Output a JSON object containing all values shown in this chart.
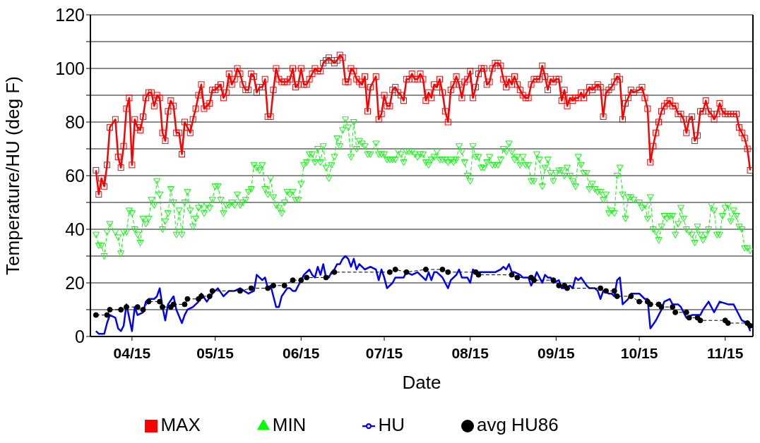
{
  "chart_data": {
    "type": "line",
    "xlabel": "Date",
    "ylabel": "Temperature/HU (deg F)",
    "ylim": [
      0,
      120
    ],
    "yticks": [
      0,
      {
        "value": 10,
        "label": null
      },
      20,
      {
        "value": 30,
        "label": null
      },
      40,
      {
        "value": 50,
        "label": null
      },
      60,
      {
        "value": 70,
        "label": null
      },
      80,
      {
        "value": 90,
        "label": null
      },
      100,
      {
        "value": 110,
        "label": null
      },
      120
    ],
    "xlim": [
      "--03-31",
      "--11-25"
    ],
    "xticks": [
      {
        "value": "--04-15",
        "label": "04/15"
      },
      {
        "value": "--05-15",
        "label": "05/15"
      },
      {
        "value": "--06-15",
        "label": "06/15"
      },
      {
        "value": "--07-15",
        "label": "07/15"
      },
      {
        "value": "--08-15",
        "label": "08/15"
      },
      {
        "value": "--09-15",
        "label": "09/15"
      },
      {
        "value": "--10-15",
        "label": "10/15"
      },
      {
        "value": "--11-15",
        "label": "11/15"
      }
    ],
    "grid": "y",
    "legend": "bottom",
    "x": [
      "--04-02",
      "--04-03",
      "--04-04",
      "--04-05",
      "--04-06",
      "--04-07",
      "--04-09",
      "--04-10",
      "--04-11",
      "--04-12",
      "--04-13",
      "--04-14",
      "--04-15",
      "--04-16",
      "--04-17",
      "--04-18",
      "--04-19",
      "--04-20",
      "--04-21",
      "--04-22",
      "--04-23",
      "--04-24",
      "--04-25",
      "--04-26",
      "--04-27",
      "--04-28",
      "--04-29",
      "--04-30",
      "--05-01",
      "--05-02",
      "--05-03",
      "--05-04",
      "--05-05",
      "--05-06",
      "--05-07",
      "--05-08",
      "--05-09",
      "--05-10",
      "--05-11",
      "--05-12",
      "--05-13",
      "--05-14",
      "--05-15",
      "--05-16",
      "--05-17",
      "--05-18",
      "--05-19",
      "--05-20",
      "--05-21",
      "--05-22",
      "--05-23",
      "--05-24",
      "--05-25",
      "--05-26",
      "--05-27",
      "--05-28",
      "--05-29",
      "--05-30",
      "--05-31",
      "--06-01",
      "--06-02",
      "--06-03",
      "--06-04",
      "--06-05",
      "--06-06",
      "--06-07",
      "--06-08",
      "--06-09",
      "--06-10",
      "--06-11",
      "--06-12",
      "--06-13",
      "--06-14",
      "--06-15",
      "--06-16",
      "--06-17",
      "--06-18",
      "--06-19",
      "--06-20",
      "--06-21",
      "--06-22",
      "--06-23",
      "--06-24",
      "--06-25",
      "--06-26",
      "--06-27",
      "--06-28",
      "--06-29",
      "--06-30",
      "--07-01",
      "--07-02",
      "--07-03",
      "--07-04",
      "--07-05",
      "--07-06",
      "--07-07",
      "--07-08",
      "--07-09",
      "--07-10",
      "--07-12",
      "--07-13",
      "--07-14",
      "--07-15",
      "--07-16",
      "--07-17",
      "--07-18",
      "--07-19",
      "--07-20",
      "--07-21",
      "--07-22",
      "--07-23",
      "--07-24",
      "--07-25",
      "--07-26",
      "--07-27",
      "--07-28",
      "--07-29",
      "--07-30",
      "--07-31",
      "--08-01",
      "--08-02",
      "--08-03",
      "--08-04",
      "--08-05",
      "--08-06",
      "--08-07",
      "--08-08",
      "--08-09",
      "--08-10",
      "--08-11",
      "--08-12",
      "--08-13",
      "--08-14",
      "--08-15",
      "--08-16",
      "--08-17",
      "--08-18",
      "--08-19",
      "--08-20",
      "--08-21",
      "--08-22",
      "--08-23",
      "--08-24",
      "--08-25",
      "--08-26",
      "--08-27",
      "--08-28",
      "--08-29",
      "--08-30",
      "--08-31",
      "--09-01",
      "--09-02",
      "--09-03",
      "--09-04",
      "--09-05",
      "--09-06",
      "--09-07",
      "--09-08",
      "--09-09",
      "--09-10",
      "--09-11",
      "--09-12",
      "--09-13",
      "--09-14",
      "--09-15",
      "--09-16",
      "--09-17",
      "--09-18",
      "--09-19",
      "--09-20",
      "--09-21",
      "--09-22",
      "--09-23",
      "--09-24",
      "--09-25",
      "--09-26",
      "--09-27",
      "--09-28",
      "--09-29",
      "--09-30",
      "--10-01",
      "--10-02",
      "--10-03",
      "--10-04",
      "--10-05",
      "--10-06",
      "--10-07",
      "--10-08",
      "--10-09",
      "--10-10",
      "--10-11",
      "--10-12",
      "--10-13",
      "--10-15",
      "--10-16",
      "--10-17",
      "--10-18",
      "--10-19",
      "--10-20",
      "--10-21",
      "--10-22",
      "--10-23",
      "--10-24",
      "--10-25",
      "--10-26",
      "--10-27",
      "--10-28",
      "--10-29",
      "--10-30",
      "--10-31",
      "--11-01",
      "--11-02",
      "--11-03",
      "--11-04",
      "--11-05",
      "--11-06",
      "--11-07",
      "--11-08",
      "--11-09",
      "--11-10",
      "--11-11",
      "--11-12",
      "--11-13",
      "--11-14",
      "--11-15",
      "--11-16",
      "--11-17",
      "--11-18",
      "--11-19",
      "--11-20",
      "--11-21",
      "--11-22",
      "--11-23",
      "--11-24"
    ],
    "series": [
      {
        "name": "MAX",
        "color": "#ff0000",
        "marker": "square",
        "line_style": "solid",
        "values": [
          62,
          53,
          59,
          56,
          64,
          78,
          81,
          67,
          63,
          71,
          85,
          89,
          64,
          81,
          78,
          77,
          82,
          89,
          91,
          91,
          86,
          90,
          89,
          76,
          73,
          84,
          88,
          86,
          76,
          76,
          68,
          80,
          78,
          76,
          81,
          85,
          90,
          94,
          85,
          86,
          87,
          92,
          92,
          93,
          94,
          89,
          91,
          98,
          94,
          96,
          100,
          98,
          94,
          92,
          92,
          98,
          97,
          91,
          93,
          93,
          96,
          82,
          82,
          92,
          100,
          96,
          95,
          95,
          95,
          96,
          100,
          93,
          94,
          100,
          94,
          94,
          96,
          98,
          100,
          99,
          99,
          102,
          103,
          104,
          103,
          102,
          103,
          105,
          104,
          95,
          95,
          100,
          99,
          96,
          95,
          94,
          97,
          84,
          93,
          97,
          81,
          83,
          90,
          86,
          86,
          92,
          93,
          91,
          90,
          88,
          96,
          96,
          98,
          96,
          96,
          98,
          96,
          88,
          91,
          89,
          94,
          93,
          96,
          91,
          84,
          80,
          92,
          94,
          97,
          94,
          89,
          95,
          96,
          99,
          89,
          93,
          98,
          100,
          100,
          94,
          95,
          100,
          102,
          102,
          101,
          96,
          93,
          96,
          94,
          97,
          94,
          92,
          90,
          89,
          89,
          94,
          96,
          96,
          96,
          101,
          97,
          92,
          96,
          95,
          96,
          96,
          88,
          92,
          86,
          89,
          88,
          89,
          89,
          91,
          89,
          91,
          93,
          92,
          93,
          94,
          93,
          82,
          91,
          92,
          93,
          95,
          97,
          96,
          81,
          87,
          89,
          92,
          91,
          92,
          93,
          89,
          85,
          65,
          71,
          76,
          80,
          84,
          86,
          87,
          88,
          86,
          86,
          83,
          83,
          81,
          76,
          81,
          82,
          73,
          75,
          84,
          84,
          88,
          84,
          83,
          81,
          83,
          87,
          84,
          83,
          83,
          83,
          83,
          83,
          78,
          76,
          74,
          70,
          62
        ]
      },
      {
        "name": "MIN",
        "color": "#00ff00",
        "marker": "triangle",
        "line_style": "dashed",
        "values": [
          38,
          34,
          34,
          30,
          39,
          42,
          39,
          37,
          31,
          39,
          39,
          47,
          46,
          40,
          38,
          35,
          44,
          42,
          44,
          51,
          49,
          58,
          53,
          40,
          43,
          46,
          55,
          50,
          38,
          47,
          38,
          50,
          54,
          47,
          41,
          44,
          48,
          49,
          46,
          49,
          48,
          51,
          56,
          56,
          51,
          46,
          49,
          49,
          50,
          49,
          53,
          49,
          50,
          51,
          54,
          55,
          64,
          63,
          62,
          64,
          55,
          53,
          59,
          52,
          49,
          48,
          46,
          50,
          54,
          53,
          54,
          51,
          51,
          57,
          64,
          65,
          68,
          68,
          65,
          70,
          65,
          71,
          63,
          59,
          64,
          67,
          74,
          71,
          77,
          81,
          78,
          67,
          80,
          70,
          73,
          72,
          71,
          68,
          68,
          72,
          68,
          68,
          68,
          66,
          66,
          66,
          66,
          69,
          68,
          65,
          69,
          69,
          69,
          68,
          67,
          68,
          68,
          65,
          64,
          66,
          67,
          69,
          66,
          66,
          66,
          65,
          66,
          65,
          66,
          71,
          69,
          65,
          60,
          58,
          71,
          67,
          67,
          63,
          63,
          65,
          67,
          64,
          64,
          64,
          66,
          70,
          69,
          72,
          69,
          66,
          67,
          64,
          67,
          64,
          64,
          58,
          58,
          68,
          66,
          56,
          63,
          66,
          61,
          58,
          61,
          62,
          62,
          60,
          63,
          60,
          58,
          56,
          67,
          64,
          61,
          61,
          55,
          57,
          55,
          54,
          54,
          51,
          53,
          46,
          47,
          46,
          60,
          63,
          53,
          44,
          52,
          52,
          51,
          50,
          48,
          49,
          44,
          52,
          40,
          39,
          36,
          41,
          45,
          44,
          45,
          45,
          38,
          42,
          48,
          44,
          40,
          39,
          38,
          35,
          41,
          38,
          36,
          38,
          40,
          49,
          47,
          38,
          38,
          45,
          48,
          49,
          43,
          47,
          45,
          41,
          40,
          33,
          33,
          32
        ]
      },
      {
        "name": "HU",
        "color": "#0000ff",
        "marker": "none",
        "line_style": "solid",
        "x": [
          "--04-02",
          "--04-03",
          "--04-04",
          "--04-05",
          "--04-06",
          "--04-07",
          "--04-09",
          "--04-10",
          "--04-11",
          "--04-12",
          "--04-13",
          "--04-15",
          "--04-16",
          "--04-17",
          "--04-19",
          "--04-20",
          "--04-21",
          "--04-23",
          "--04-24",
          "--04-25",
          "--04-26",
          "--04-27",
          "--04-28",
          "--04-30",
          "--05-01",
          "--05-03",
          "--05-04",
          "--05-05",
          "--05-07",
          "--05-09",
          "--05-10",
          "--05-12",
          "--05-14",
          "--05-16",
          "--05-18",
          "--05-20",
          "--05-22",
          "--05-24",
          "--05-27",
          "--05-29",
          "--05-30",
          "--05-31",
          "--06-01",
          "--06-02",
          "--06-03",
          "--06-04",
          "--06-05",
          "--06-06",
          "--06-07",
          "--06-08",
          "--06-10",
          "--06-11",
          "--06-12",
          "--06-13",
          "--06-15",
          "--06-16",
          "--06-18",
          "--06-19",
          "--06-20",
          "--06-21",
          "--06-22",
          "--06-23",
          "--06-24",
          "--06-25",
          "--06-26",
          "--06-27",
          "--06-28",
          "--06-29",
          "--06-30",
          "--07-01",
          "--07-02",
          "--07-03",
          "--07-04",
          "--07-05",
          "--07-06",
          "--07-07",
          "--07-08",
          "--07-10",
          "--07-12",
          "--07-13",
          "--07-14",
          "--07-15",
          "--07-16",
          "--07-18",
          "--07-19",
          "--07-21",
          "--07-22",
          "--07-23",
          "--07-25",
          "--07-27",
          "--07-29",
          "--07-30",
          "--07-31",
          "--08-01",
          "--08-02",
          "--08-03",
          "--08-04",
          "--08-05",
          "--08-06",
          "--08-07",
          "--08-08",
          "--08-09",
          "--08-10",
          "--08-11",
          "--08-12",
          "--08-14",
          "--08-15",
          "--08-16",
          "--08-17",
          "--08-19",
          "--08-21",
          "--08-23",
          "--08-24",
          "--08-26",
          "--08-27",
          "--08-28",
          "--08-29",
          "--08-30",
          "--08-31",
          "--09-02",
          "--09-03",
          "--09-05",
          "--09-06",
          "--09-07",
          "--09-08",
          "--09-09",
          "--09-10",
          "--09-11",
          "--09-12",
          "--09-13",
          "--09-14",
          "--09-16",
          "--09-17",
          "--09-18",
          "--09-20",
          "--09-21",
          "--09-22",
          "--09-23",
          "--09-24",
          "--09-26",
          "--09-27",
          "--09-29",
          "--09-30",
          "--10-01",
          "--10-02",
          "--10-04",
          "--10-05",
          "--10-06",
          "--10-07",
          "--10-08",
          "--10-09",
          "--10-10",
          "--10-11",
          "--10-12",
          "--10-15",
          "--10-16",
          "--10-17",
          "--10-18",
          "--10-19",
          "--10-21",
          "--10-23",
          "--10-24",
          "--10-26",
          "--10-27",
          "--10-29",
          "--10-30",
          "--11-01",
          "--11-03",
          "--11-06",
          "--11-07",
          "--11-09",
          "--11-11",
          "--11-13",
          "--11-16",
          "--11-18",
          "--11-19",
          "--11-21",
          "--11-23",
          "--11-24"
        ],
        "values": [
          2,
          1,
          1,
          1,
          5,
          8,
          7,
          3,
          2,
          4,
          12,
          2,
          11,
          8,
          9,
          13,
          14,
          14,
          15,
          18,
          11,
          6,
          12,
          15,
          10,
          5,
          8,
          10,
          11,
          13,
          16,
          13,
          16,
          18,
          15,
          17,
          17,
          18,
          16,
          17,
          23,
          22,
          21,
          22,
          18,
          19,
          15,
          11,
          11,
          15,
          18,
          18,
          17,
          17,
          21,
          23,
          25,
          23,
          22,
          26,
          23,
          27,
          22,
          22,
          24,
          25,
          27,
          27,
          29,
          30,
          29,
          26,
          29,
          25,
          27,
          26,
          25,
          26,
          25,
          21,
          25,
          22,
          18,
          20,
          22,
          22,
          22,
          24,
          23,
          24,
          22,
          21,
          24,
          21,
          24,
          24,
          23,
          22,
          20,
          18,
          21,
          22,
          23,
          25,
          22,
          22,
          20,
          25,
          24,
          24,
          24,
          24,
          24,
          25,
          26,
          25,
          27,
          24,
          24,
          23,
          22,
          22,
          19,
          21,
          24,
          22,
          20,
          23,
          22,
          22,
          20,
          21,
          18,
          18,
          19,
          18,
          22,
          21,
          22,
          19,
          18,
          18,
          17,
          14,
          17,
          16,
          16,
          15,
          21,
          22,
          12,
          13,
          14,
          16,
          16,
          15,
          14,
          14,
          3,
          6,
          10,
          13,
          14,
          12,
          12,
          11,
          7,
          8,
          8,
          10,
          13,
          9,
          13,
          12,
          12,
          10,
          6,
          5,
          2
        ]
      },
      {
        "name": "avg HU86",
        "color": "#000000",
        "marker": "circle",
        "line_style": "dashed",
        "x": [
          "--04-02",
          "--04-06",
          "--04-07",
          "--04-11",
          "--04-13",
          "--04-17",
          "--04-19",
          "--04-21",
          "--04-25",
          "--04-26",
          "--04-29",
          "--04-30",
          "--05-04",
          "--05-05",
          "--05-09",
          "--05-10",
          "--05-13",
          "--05-14",
          "--05-24",
          "--05-28",
          "--06-03",
          "--06-05",
          "--06-09",
          "--06-12",
          "--06-15",
          "--06-17",
          "--06-24",
          "--06-27",
          "--07-17",
          "--07-19",
          "--07-23",
          "--07-30",
          "--08-05",
          "--08-07",
          "--08-17",
          "--08-18",
          "--08-30",
          "--09-01",
          "--09-06",
          "--09-07",
          "--09-14",
          "--09-16",
          "--09-18",
          "--09-19",
          "--10-01",
          "--10-03",
          "--10-06",
          "--10-07",
          "--10-12",
          "--10-15",
          "--10-18",
          "--10-19",
          "--10-22",
          "--10-23",
          "--10-27",
          "--10-28",
          "--11-01",
          "--11-02",
          "--11-05",
          "--11-06",
          "--11-15",
          "--11-16",
          "--11-23",
          "--11-24"
        ],
        "values": [
          8,
          8,
          10,
          10,
          11,
          11,
          10,
          13,
          13,
          11,
          11,
          12,
          12,
          14,
          14,
          15,
          15,
          17,
          17,
          18,
          18,
          19,
          19,
          21,
          21,
          22,
          22,
          24,
          24,
          25,
          24,
          25,
          25,
          24,
          24,
          23,
          23,
          22,
          22,
          21,
          21,
          19,
          19,
          18,
          18,
          17,
          17,
          15,
          15,
          13,
          13,
          12,
          12,
          11,
          11,
          9,
          9,
          7,
          7,
          6,
          6,
          5,
          5,
          4
        ]
      }
    ]
  }
}
